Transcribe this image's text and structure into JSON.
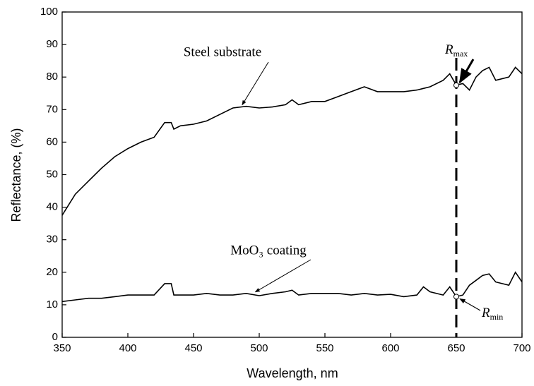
{
  "chart_data": {
    "type": "line",
    "xlabel": "Wavelength, nm",
    "ylabel": "Reflectance, (%)",
    "x": [
      350,
      360,
      370,
      380,
      390,
      400,
      410,
      420,
      428,
      433,
      435,
      440,
      450,
      460,
      470,
      480,
      490,
      500,
      510,
      520,
      525,
      530,
      540,
      550,
      560,
      570,
      580,
      590,
      600,
      610,
      620,
      625,
      630,
      640,
      645,
      650,
      655,
      660,
      665,
      670,
      675,
      680,
      690,
      695,
      700
    ],
    "series": [
      {
        "name": "Steel substrate",
        "color": "#000000",
        "values": [
          37.5,
          44,
          48,
          52,
          55.5,
          58,
          60,
          61.5,
          66,
          66,
          64,
          65,
          65.5,
          66.5,
          68.5,
          70.5,
          71,
          70.5,
          70.8,
          71.5,
          73,
          71.5,
          72.5,
          72.5,
          74,
          75.5,
          77,
          75.5,
          75.5,
          75.5,
          76,
          76.5,
          77,
          79,
          81,
          77.5,
          78,
          76,
          80,
          82,
          83,
          79,
          80,
          83,
          81
        ]
      },
      {
        "name": "MoO₃ coating",
        "color": "#000000",
        "values": [
          11,
          11.5,
          12,
          12,
          12.5,
          13,
          13,
          13,
          16.5,
          16.5,
          13,
          13,
          13,
          13.5,
          13,
          13,
          13.5,
          12.8,
          13.5,
          14,
          14.5,
          13,
          13.5,
          13.5,
          13.5,
          13,
          13.5,
          13,
          13.2,
          12.5,
          13,
          15.5,
          14,
          13,
          15.5,
          12.5,
          13,
          16,
          17.5,
          19,
          19.5,
          17,
          16,
          20,
          17
        ]
      }
    ],
    "marker_x": 650,
    "markers": [
      {
        "symbol": "R",
        "subscript": "max",
        "y": 77.5
      },
      {
        "symbol": "R",
        "subscript": "min",
        "y": 12.5
      }
    ],
    "xlim": [
      350,
      700
    ],
    "ylim": [
      0,
      100
    ],
    "xticks": [
      350,
      400,
      450,
      500,
      550,
      600,
      650,
      700
    ],
    "yticks": [
      0,
      10,
      20,
      30,
      40,
      50,
      60,
      70,
      80,
      90,
      100
    ],
    "grid": false
  }
}
